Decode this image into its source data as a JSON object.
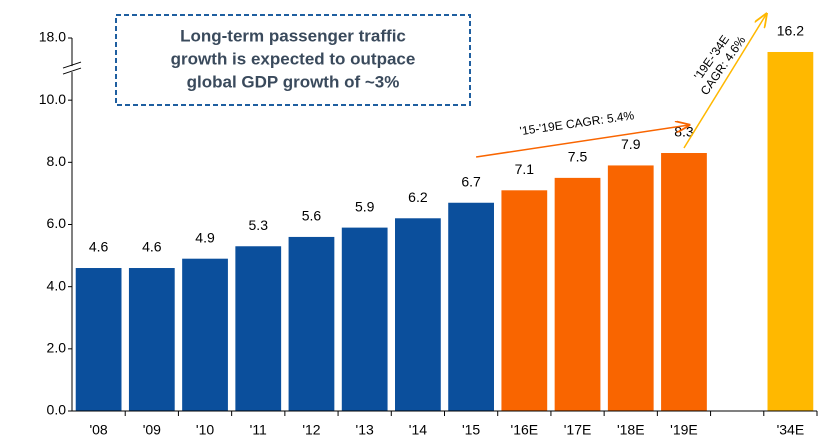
{
  "chart_data": {
    "type": "bar",
    "callout": [
      "Long-term passenger traffic",
      "growth is expected to outpace",
      "global GDP growth of ~3%"
    ],
    "categories": [
      "'08",
      "'09",
      "'10",
      "'11",
      "'12",
      "'13",
      "'14",
      "'15",
      "'16E",
      "'17E",
      "'18E",
      "'19E",
      null,
      "'34E"
    ],
    "values": [
      4.6,
      4.6,
      4.9,
      5.3,
      5.6,
      5.9,
      6.2,
      6.7,
      7.1,
      7.5,
      7.9,
      8.3,
      null,
      16.2
    ],
    "colors": [
      "#0b4f9c",
      "#0b4f9c",
      "#0b4f9c",
      "#0b4f9c",
      "#0b4f9c",
      "#0b4f9c",
      "#0b4f9c",
      "#0b4f9c",
      "#f96500",
      "#f96500",
      "#f96500",
      "#f96500",
      null,
      "#ffb800"
    ],
    "ylim": [
      0,
      18
    ],
    "yticks": [
      {
        "value": 0,
        "label": "0.0"
      },
      {
        "value": 2,
        "label": "2.0"
      },
      {
        "value": 4,
        "label": "4.0"
      },
      {
        "value": 6,
        "label": "6.0"
      },
      {
        "value": 8,
        "label": "8.0"
      },
      {
        "value": 10,
        "label": "10.0"
      },
      {
        "value": 18,
        "label": "18.0"
      }
    ],
    "axis_break": true,
    "annotations": [
      {
        "text": [
          "'15-'19E CAGR: 5.4%"
        ],
        "color": "#f96500"
      },
      {
        "text": [
          "'19E-'34E",
          "CAGR: 4.6%"
        ],
        "color": "#ffb800"
      }
    ]
  }
}
